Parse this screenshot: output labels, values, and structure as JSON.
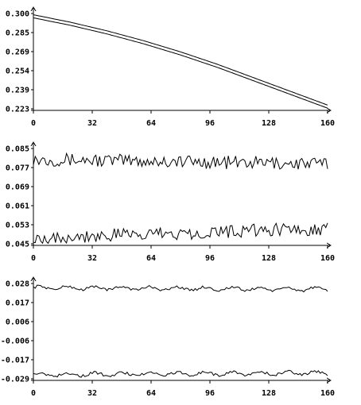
{
  "chart_data": [
    {
      "type": "line",
      "x_ticks": [
        0,
        32,
        64,
        96,
        128,
        160
      ],
      "y_ticks": [
        "0.300",
        "0.285",
        "0.269",
        "0.254",
        "0.239",
        "0.223"
      ],
      "xlim": [
        0,
        160
      ],
      "ylim": [
        0.223,
        0.3
      ],
      "grid": false,
      "series": [
        {
          "x": [
            0,
            20,
            40,
            60,
            80,
            100,
            120,
            140,
            160
          ],
          "values": [
            0.299,
            0.293,
            0.286,
            0.278,
            0.269,
            0.259,
            0.248,
            0.237,
            0.226
          ],
          "style": "smooth"
        },
        {
          "x": [
            0,
            20,
            40,
            60,
            80,
            100,
            120,
            140,
            160
          ],
          "values": [
            0.2965,
            0.2905,
            0.2835,
            0.2755,
            0.2665,
            0.2565,
            0.2455,
            0.2345,
            0.2235
          ],
          "style": "smooth"
        }
      ]
    },
    {
      "type": "line",
      "x_ticks": [
        0,
        32,
        64,
        96,
        128,
        160
      ],
      "y_ticks": [
        "0.085",
        "0.077",
        "0.069",
        "0.061",
        "0.053",
        "0.045"
      ],
      "xlim": [
        0,
        160
      ],
      "ylim": [
        0.045,
        0.085
      ],
      "grid": false,
      "series": [
        {
          "mean_start": 0.0805,
          "mean_end": 0.0785,
          "amplitude": 0.0028,
          "points": 161,
          "style": "noisy"
        },
        {
          "mean_start": 0.0475,
          "mean_end": 0.0515,
          "amplitude": 0.0028,
          "points": 161,
          "style": "noisy"
        }
      ]
    },
    {
      "type": "line",
      "x_ticks": [
        0,
        32,
        64,
        96,
        128,
        160
      ],
      "y_ticks": [
        "0.028",
        "0.017",
        "0.006",
        "-0.006",
        "-0.017",
        "-0.029"
      ],
      "xlim": [
        0,
        160
      ],
      "ylim": [
        -0.029,
        0.028
      ],
      "grid": false,
      "series": [
        {
          "mean_start": 0.0255,
          "mean_end": 0.0245,
          "amplitude": 0.0018,
          "points": 161,
          "style": "wavy"
        },
        {
          "mean_start": -0.0265,
          "mean_end": -0.0255,
          "amplitude": 0.0018,
          "points": 161,
          "style": "wavy"
        }
      ]
    }
  ]
}
